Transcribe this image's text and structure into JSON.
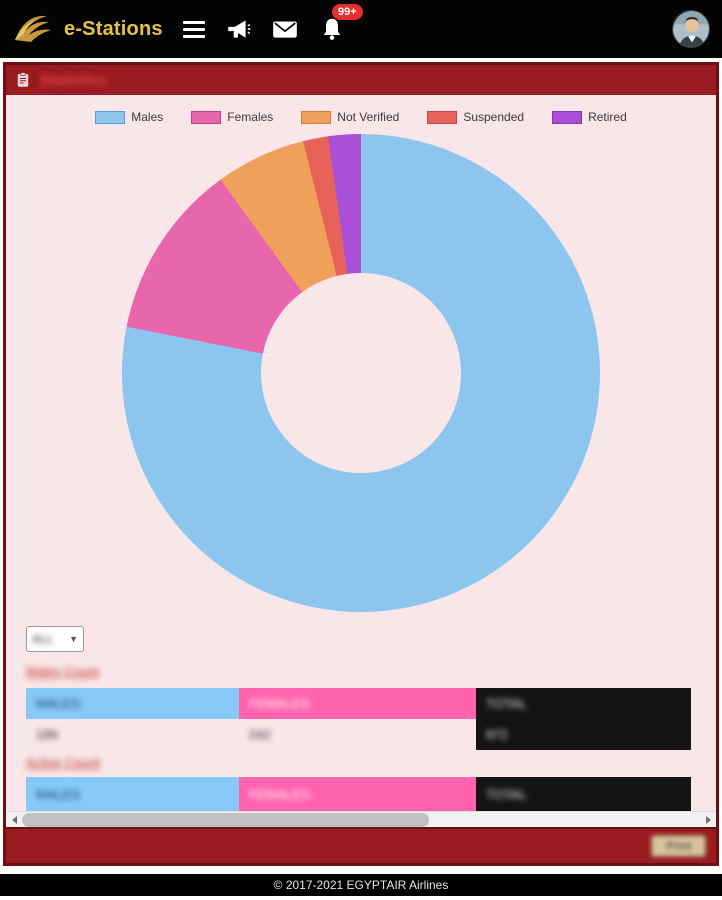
{
  "topbar": {
    "brand": "e-Stations",
    "notification_badge": "99+"
  },
  "panel": {
    "title": "Statistics"
  },
  "chart_data": {
    "type": "pie",
    "donut": true,
    "title": "",
    "labels": [
      "Males",
      "Females",
      "Not Verified",
      "Suspended",
      "Retired"
    ],
    "values_percent": [
      78.1,
      11.9,
      6.1,
      1.7,
      2.2
    ],
    "colors": [
      "#8cc5ee",
      "#e766ae",
      "#efa05a",
      "#e7635a",
      "#aa4fd8"
    ],
    "border_colors": [
      "#5b9bd5",
      "#c2408a",
      "#d97b2f",
      "#c8443e",
      "#8434b4"
    ],
    "legend_position": "top",
    "background": "#f8e6e9"
  },
  "filters": {
    "selected": "ALL"
  },
  "links": {
    "first": "Males Count",
    "second": "Active Count"
  },
  "table": {
    "headers": [
      "MALES",
      "FEMALES",
      "TOTAL"
    ],
    "rows": [
      [
        "189",
        "242",
        "972"
      ]
    ]
  },
  "table2": {
    "headers": [
      "MALES",
      "FEMALES",
      "TOTAL"
    ]
  },
  "bottombar": {
    "action_label": "Print"
  },
  "footer": {
    "copyright": "© 2017-2021 EGYPTAIR Airlines"
  }
}
